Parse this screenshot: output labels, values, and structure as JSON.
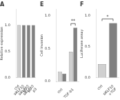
{
  "chart_data": [
    {
      "type": "bar",
      "title": "A",
      "categories": [
        "ctrl",
        "siKLF10\np1",
        "siKLF10\np2",
        "siKLF10\np3"
      ],
      "values": [
        1.0,
        1.0,
        1.0,
        1.0
      ],
      "colors": [
        "#d0d0d0",
        "#808080",
        "#808080",
        "#808080"
      ],
      "ylabel": "Relative expression",
      "ylim": [
        0,
        1.3
      ],
      "yticks": [
        {
          "value": 0,
          "label": "0.0"
        },
        0.5,
        {
          "value": 1.0,
          "label": "1.0"
        }
      ],
      "grid": false
    },
    {
      "type": "bar",
      "title": "E",
      "categories": [
        "ctrl",
        "TGF-b1"
      ],
      "series": [
        {
          "color": "#d0d0d0",
          "values": [
            0.15,
            0.45
          ]
        },
        {
          "color": "#808080",
          "values": [
            0.12,
            0.82
          ]
        }
      ],
      "ylabel": "Cell invasion",
      "ylim": [
        0,
        1.1
      ],
      "yticks": [
        {
          "value": 0,
          "label": "0.0"
        },
        0.5,
        {
          "value": 1.0,
          "label": "1.0"
        }
      ],
      "grid": false,
      "annotations": [
        {
          "text": "**",
          "categories": [
            "TGF-b1"
          ]
        }
      ]
    },
    {
      "type": "bar",
      "title": "F",
      "categories": [
        "ctrl",
        "siKLF10\n+TGF"
      ],
      "values": [
        0.22,
        0.88
      ],
      "colors": [
        "#d0d0d0",
        "#808080"
      ],
      "ylabel": "Luciferase assay",
      "ylim": [
        0,
        1.1
      ],
      "yticks": [
        {
          "value": 0,
          "label": "0.0"
        },
        0.5,
        {
          "value": 1.0,
          "label": "1.0"
        }
      ],
      "grid": false,
      "annotations": [
        {
          "text": "*",
          "categories": [
            "ctrl",
            "siKLF10\n+TGF"
          ]
        }
      ]
    }
  ]
}
